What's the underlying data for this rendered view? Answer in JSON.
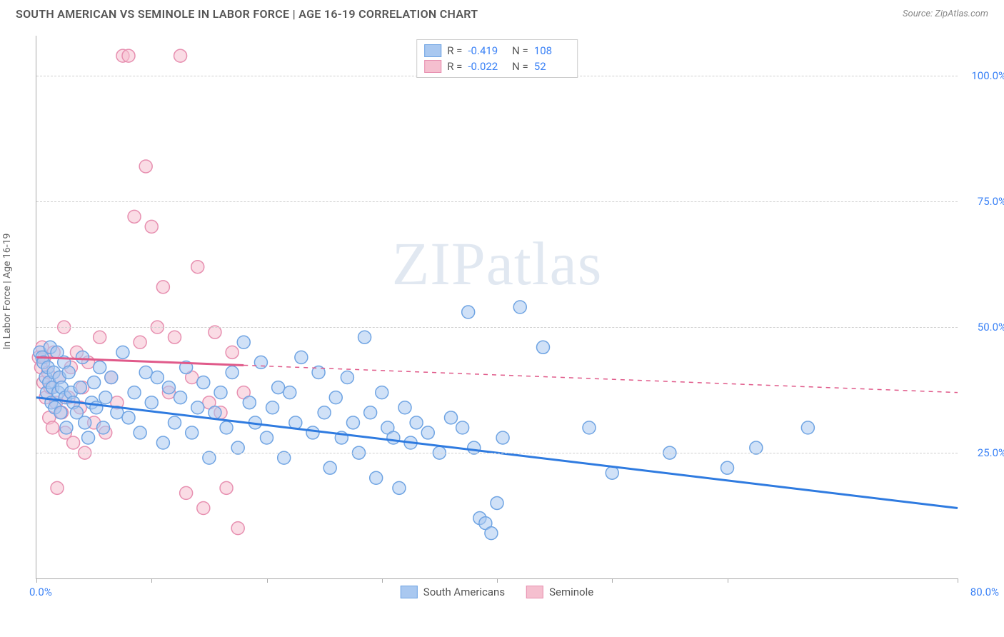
{
  "header": {
    "title": "SOUTH AMERICAN VS SEMINOLE IN LABOR FORCE | AGE 16-19 CORRELATION CHART",
    "source": "Source: ZipAtlas.com"
  },
  "axes": {
    "ylabel": "In Labor Force | Age 16-19",
    "x_tick_left": "0.0%",
    "x_tick_right": "80.0%",
    "y_ticks": [
      {
        "v": 25,
        "label": "25.0%"
      },
      {
        "v": 50,
        "label": "50.0%"
      },
      {
        "v": 75,
        "label": "75.0%"
      },
      {
        "v": 100,
        "label": "100.0%"
      }
    ],
    "x_tick_marks_pct": [
      0,
      12.5,
      25,
      37.5,
      50,
      62.5,
      75,
      100
    ],
    "xlim": [
      0,
      80
    ],
    "ylim": [
      0,
      108
    ]
  },
  "pstyle": {
    "bg": "#ffffff",
    "grid": "#d0d0d0",
    "axis": "#aaaaaa",
    "tick_color": "#3b82f6",
    "label_color": "#666666",
    "title_color": "#555555",
    "marker_r": 9,
    "marker_opacity": 0.55,
    "line_w": 3,
    "dash_w": 1.5
  },
  "series": {
    "south_americans": {
      "label": "South Americans",
      "fill": "#a9c8f0",
      "stroke": "#6fa4e3",
      "line": "#2f7be0",
      "R": "-0.419",
      "N": "108",
      "trend": {
        "x1": 0,
        "y1": 36,
        "x2": 80,
        "y2": 14
      },
      "points": [
        [
          0.3,
          45
        ],
        [
          0.5,
          44
        ],
        [
          0.6,
          43
        ],
        [
          0.8,
          40
        ],
        [
          0.9,
          37
        ],
        [
          1.0,
          42
        ],
        [
          1.1,
          39
        ],
        [
          1.2,
          46
        ],
        [
          1.3,
          35
        ],
        [
          1.4,
          38
        ],
        [
          1.5,
          41
        ],
        [
          1.6,
          34
        ],
        [
          1.8,
          45
        ],
        [
          1.9,
          37
        ],
        [
          2.0,
          40
        ],
        [
          2.1,
          33
        ],
        [
          2.2,
          38
        ],
        [
          2.4,
          43
        ],
        [
          2.5,
          36
        ],
        [
          2.6,
          30
        ],
        [
          2.8,
          41
        ],
        [
          3.0,
          37
        ],
        [
          3.2,
          35
        ],
        [
          3.5,
          33
        ],
        [
          3.8,
          38
        ],
        [
          4.0,
          44
        ],
        [
          4.2,
          31
        ],
        [
          4.5,
          28
        ],
        [
          4.8,
          35
        ],
        [
          5.0,
          39
        ],
        [
          5.2,
          34
        ],
        [
          5.5,
          42
        ],
        [
          5.8,
          30
        ],
        [
          6.0,
          36
        ],
        [
          6.5,
          40
        ],
        [
          7.0,
          33
        ],
        [
          7.5,
          45
        ],
        [
          8.0,
          32
        ],
        [
          8.5,
          37
        ],
        [
          9.0,
          29
        ],
        [
          9.5,
          41
        ],
        [
          10.0,
          35
        ],
        [
          10.5,
          40
        ],
        [
          11.0,
          27
        ],
        [
          11.5,
          38
        ],
        [
          12.0,
          31
        ],
        [
          12.5,
          36
        ],
        [
          13.0,
          42
        ],
        [
          13.5,
          29
        ],
        [
          14.0,
          34
        ],
        [
          14.5,
          39
        ],
        [
          15.0,
          24
        ],
        [
          15.5,
          33
        ],
        [
          16.0,
          37
        ],
        [
          16.5,
          30
        ],
        [
          17.0,
          41
        ],
        [
          17.5,
          26
        ],
        [
          18.0,
          47
        ],
        [
          18.5,
          35
        ],
        [
          19.0,
          31
        ],
        [
          19.5,
          43
        ],
        [
          20.0,
          28
        ],
        [
          20.5,
          34
        ],
        [
          21.0,
          38
        ],
        [
          21.5,
          24
        ],
        [
          22.0,
          37
        ],
        [
          22.5,
          31
        ],
        [
          23.0,
          44
        ],
        [
          24.0,
          29
        ],
        [
          24.5,
          41
        ],
        [
          25.0,
          33
        ],
        [
          25.5,
          22
        ],
        [
          26.0,
          36
        ],
        [
          26.5,
          28
        ],
        [
          27.0,
          40
        ],
        [
          27.5,
          31
        ],
        [
          28.0,
          25
        ],
        [
          28.5,
          48
        ],
        [
          29.0,
          33
        ],
        [
          29.5,
          20
        ],
        [
          30.0,
          37
        ],
        [
          30.5,
          30
        ],
        [
          31.0,
          28
        ],
        [
          31.5,
          18
        ],
        [
          32.0,
          34
        ],
        [
          32.5,
          27
        ],
        [
          33.0,
          31
        ],
        [
          34.0,
          29
        ],
        [
          35.0,
          25
        ],
        [
          36.0,
          32
        ],
        [
          37.0,
          30
        ],
        [
          37.5,
          53
        ],
        [
          38.0,
          26
        ],
        [
          38.5,
          12
        ],
        [
          39.0,
          11
        ],
        [
          39.5,
          9
        ],
        [
          40.0,
          15
        ],
        [
          40.5,
          28
        ],
        [
          42.0,
          54
        ],
        [
          44.0,
          46
        ],
        [
          48.0,
          30
        ],
        [
          50.0,
          21
        ],
        [
          55.0,
          25
        ],
        [
          60.0,
          22
        ],
        [
          67.0,
          30
        ],
        [
          62.5,
          26
        ]
      ]
    },
    "seminole": {
      "label": "Seminole",
      "fill": "#f5bfcf",
      "stroke": "#e78fb0",
      "line": "#e05a8a",
      "R": "-0.022",
      "N": "52",
      "trend": {
        "x1": 0,
        "y1": 44,
        "x2": 80,
        "y2": 37
      },
      "trend_solid_until": 18,
      "points": [
        [
          0.2,
          44
        ],
        [
          0.4,
          42
        ],
        [
          0.5,
          46
        ],
        [
          0.6,
          39
        ],
        [
          0.7,
          44
        ],
        [
          0.8,
          36
        ],
        [
          1.0,
          41
        ],
        [
          1.1,
          32
        ],
        [
          1.2,
          38
        ],
        [
          1.4,
          30
        ],
        [
          1.5,
          45
        ],
        [
          1.7,
          35
        ],
        [
          1.8,
          18
        ],
        [
          2.0,
          40
        ],
        [
          2.2,
          33
        ],
        [
          2.4,
          50
        ],
        [
          2.5,
          29
        ],
        [
          2.8,
          36
        ],
        [
          3.0,
          42
        ],
        [
          3.2,
          27
        ],
        [
          3.5,
          45
        ],
        [
          3.8,
          34
        ],
        [
          4.0,
          38
        ],
        [
          4.2,
          25
        ],
        [
          4.5,
          43
        ],
        [
          5.0,
          31
        ],
        [
          5.5,
          48
        ],
        [
          6.0,
          29
        ],
        [
          6.5,
          40
        ],
        [
          7.0,
          35
        ],
        [
          7.5,
          104
        ],
        [
          8.0,
          104
        ],
        [
          8.5,
          72
        ],
        [
          9.0,
          47
        ],
        [
          9.5,
          82
        ],
        [
          10.0,
          70
        ],
        [
          10.5,
          50
        ],
        [
          11.0,
          58
        ],
        [
          11.5,
          37
        ],
        [
          12.0,
          48
        ],
        [
          12.5,
          104
        ],
        [
          13.0,
          17
        ],
        [
          13.5,
          40
        ],
        [
          14.0,
          62
        ],
        [
          14.5,
          14
        ],
        [
          15.0,
          35
        ],
        [
          15.5,
          49
        ],
        [
          16.0,
          33
        ],
        [
          16.5,
          18
        ],
        [
          17.0,
          45
        ],
        [
          17.5,
          10
        ],
        [
          18.0,
          37
        ]
      ]
    }
  },
  "legend_bottom": {
    "items": [
      {
        "label": "South Americans",
        "fill": "#a9c8f0",
        "stroke": "#6fa4e3"
      },
      {
        "label": "Seminole",
        "fill": "#f5bfcf",
        "stroke": "#e78fb0"
      }
    ]
  },
  "watermark": {
    "zip": "ZIP",
    "atlas": "atlas"
  }
}
